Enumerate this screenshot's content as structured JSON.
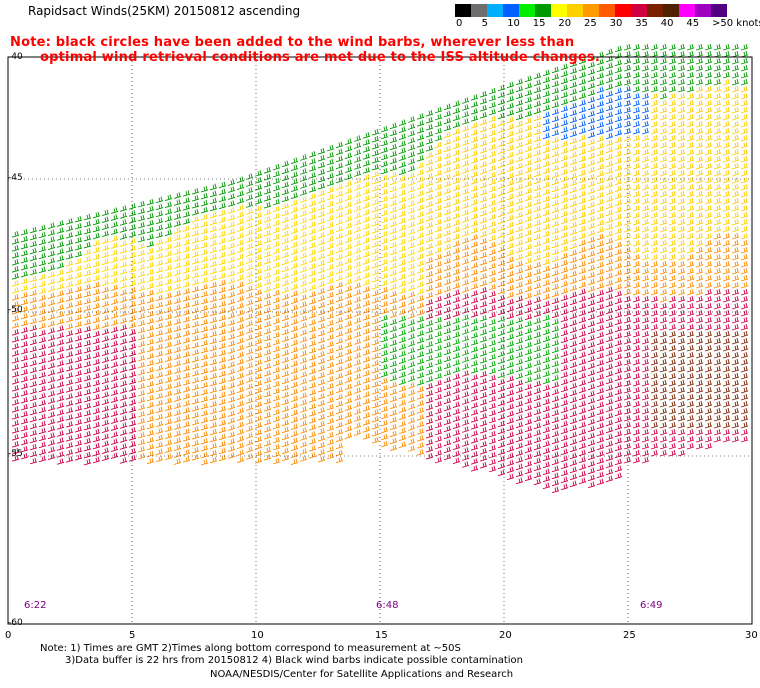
{
  "title": "Rapidsact Winds(25KM) 20150812 ascending",
  "note_line1": "Note: black circles have been added to the wind barbs, wherever less than",
  "note_line2": "optimal wind retrieval conditions are met due to the ISS altitude changes.",
  "legend": {
    "colors": [
      "#000000",
      "#6e6e6e",
      "#00b0ff",
      "#0060ff",
      "#00ee00",
      "#009a00",
      "#ffff00",
      "#ffd000",
      "#ff9a00",
      "#ff5a00",
      "#ff0000",
      "#d00040",
      "#7a2000",
      "#502000",
      "#ff00ff",
      "#a000c0",
      "#500080"
    ],
    "labels": [
      "0",
      "5",
      "10",
      "15",
      "20",
      "25",
      "30",
      "35",
      "40",
      "45",
      ">50 knots"
    ]
  },
  "x_ticks": [
    "0",
    "5",
    "10",
    "15",
    "20",
    "25",
    "30"
  ],
  "y_ticks": [
    "-40",
    "-45",
    "-50",
    "-55",
    "-60"
  ],
  "times": [
    "6:22",
    "6:48",
    "6:49"
  ],
  "footer_line1": "Note: 1) Times are GMT 2)Times along bottom correspond to measurement at ~50S",
  "footer_line2": "3)Data buffer is 22 hrs from 20150812 4) Black wind barbs indicate possible contamination",
  "footer_line3": "NOAA/NESDIS/Center for Satellite Applications and Research"
}
